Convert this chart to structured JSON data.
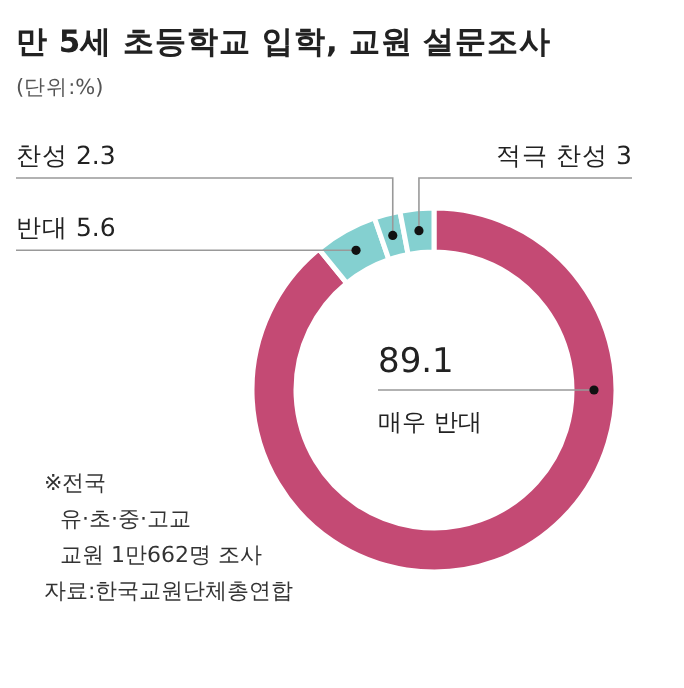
{
  "chart_data": {
    "type": "donut",
    "title": "만 5세 초등학교 입학, 교원 설문조사",
    "subtitle": "(단위:%)",
    "categories": [
      "매우 반대",
      "반대 5.6",
      "찬성 2.3",
      "적극 찬성 3"
    ],
    "values": [
      89.1,
      5.6,
      2.3,
      3
    ],
    "colors": [
      "#c44a74",
      "#84d0d0",
      "#84d0d0",
      "#84d0d0"
    ],
    "value_labels": [
      "89.1",
      null,
      null,
      null
    ],
    "annotations": [
      "※전국",
      "유·초·중·고교",
      "교원 1만662명 조사",
      "자료:한국교원단체총연합"
    ]
  }
}
